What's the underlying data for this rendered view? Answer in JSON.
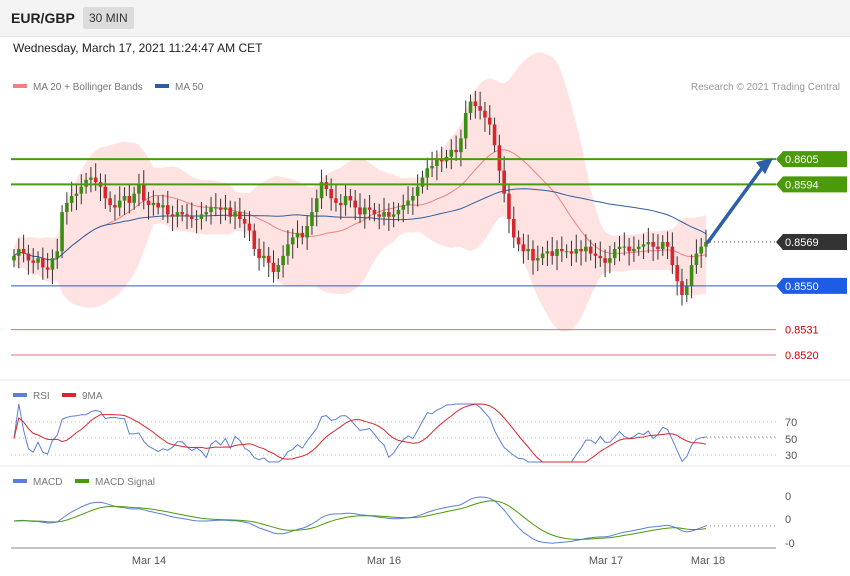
{
  "header": {
    "symbol": "EUR/GBP",
    "timeframe": "30 MIN",
    "date": "Wednesday, March 17, 2021 11:24:47 AM CET"
  },
  "legend": {
    "ma20": "MA 20 + Bollinger Bands",
    "ma50": "MA 50",
    "credit": "Research © 2021 Trading Central",
    "rsi": "RSI",
    "rsi_ma": "9MA",
    "macd": "MACD",
    "macd_signal": "MACD Signal"
  },
  "colors": {
    "up": "#3a8f12",
    "down": "#d8262d",
    "ma20": "#f28080",
    "ma50": "#2f5d9e",
    "bands": "#ffe3e3",
    "resistance": "#4a9a0a",
    "support": "#1e5ce6",
    "target": "#e07070",
    "last": "#333333",
    "arrow": "#2d5ea8"
  },
  "chart_data": [
    {
      "type": "candlestick",
      "ylim": [
        0.851,
        0.8648
      ],
      "levels": [
        {
          "value": 0.8605,
          "label": "0.8605",
          "kind": "resistance"
        },
        {
          "value": 0.8594,
          "label": "0.8594",
          "kind": "resistance"
        },
        {
          "value": 0.8569,
          "label": "0.8569",
          "kind": "last"
        },
        {
          "value": 0.855,
          "label": "0.8550",
          "kind": "support"
        },
        {
          "value": 0.8531,
          "label": "0.8531",
          "kind": "target"
        },
        {
          "value": 0.852,
          "label": "0.8520",
          "kind": "target"
        }
      ],
      "x_ticks": [
        "Mar 14",
        "Mar 16",
        "Mar 17",
        "Mar 18"
      ],
      "close": [
        0.8563,
        0.8566,
        0.8564,
        0.8561,
        0.856,
        0.8562,
        0.8558,
        0.8557,
        0.8562,
        0.8565,
        0.8582,
        0.8586,
        0.8589,
        0.859,
        0.8593,
        0.8596,
        0.8597,
        0.8595,
        0.8593,
        0.8588,
        0.8585,
        0.8584,
        0.8587,
        0.8589,
        0.8586,
        0.859,
        0.8594,
        0.8587,
        0.8585,
        0.8586,
        0.8584,
        0.8585,
        0.8581,
        0.858,
        0.8582,
        0.8581,
        0.858,
        0.8579,
        0.8579,
        0.8581,
        0.8582,
        0.8584,
        0.8584,
        0.8583,
        0.8584,
        0.858,
        0.8582,
        0.8579,
        0.8577,
        0.8574,
        0.8566,
        0.8562,
        0.8563,
        0.856,
        0.8556,
        0.8559,
        0.8563,
        0.8568,
        0.8571,
        0.8573,
        0.8571,
        0.8576,
        0.8582,
        0.8588,
        0.8595,
        0.8592,
        0.8588,
        0.8586,
        0.8585,
        0.8589,
        0.8587,
        0.8584,
        0.8581,
        0.8584,
        0.8583,
        0.8581,
        0.858,
        0.8582,
        0.858,
        0.8581,
        0.8583,
        0.8585,
        0.8587,
        0.8589,
        0.8593,
        0.8597,
        0.8601,
        0.8602,
        0.8605,
        0.8604,
        0.8606,
        0.8609,
        0.8608,
        0.8614,
        0.8625,
        0.863,
        0.8628,
        0.8626,
        0.8623,
        0.862,
        0.8611,
        0.86,
        0.859,
        0.8579,
        0.8571,
        0.8568,
        0.8565,
        0.8566,
        0.8561,
        0.8562,
        0.8564,
        0.8565,
        0.8563,
        0.8566,
        0.8565,
        0.8565,
        0.8564,
        0.8566,
        0.8565,
        0.8567,
        0.8564,
        0.8563,
        0.8562,
        0.856,
        0.8562,
        0.8566,
        0.8567,
        0.8567,
        0.8565,
        0.8566,
        0.8567,
        0.8568,
        0.8569,
        0.8567,
        0.8566,
        0.8569,
        0.8567,
        0.8559,
        0.8552,
        0.8546,
        0.855,
        0.8559,
        0.8564,
        0.8567,
        0.8569
      ]
    },
    {
      "type": "line",
      "title": "RSI",
      "y_ticks": [
        "70",
        "50",
        "30"
      ],
      "levels": [
        70,
        50,
        30
      ]
    },
    {
      "type": "line",
      "title": "MACD",
      "y_ticks": [
        "0",
        "0",
        "-0"
      ]
    }
  ]
}
